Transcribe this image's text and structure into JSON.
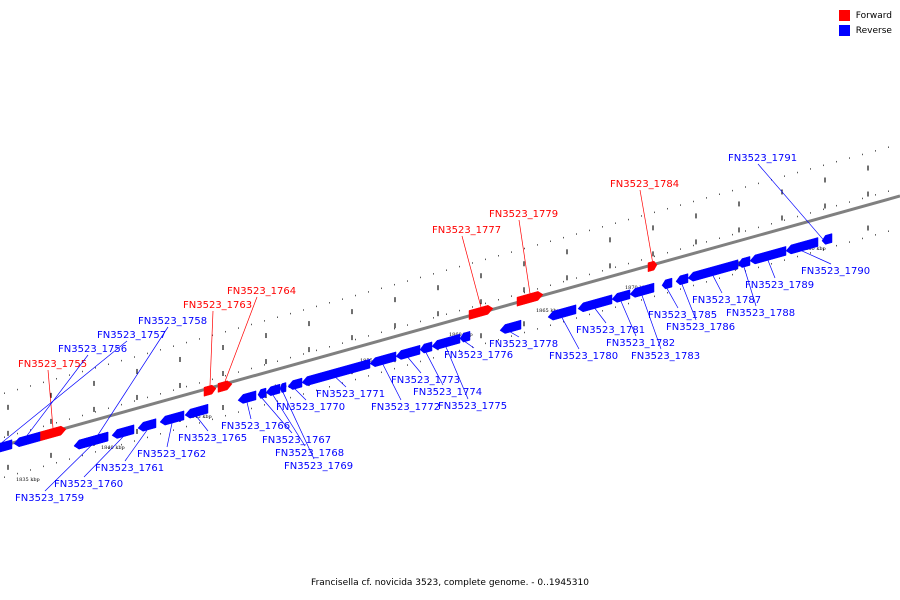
{
  "colors": {
    "forward": "#ff0000",
    "reverse": "#0000ff",
    "backbone": "#808080"
  },
  "legend": [
    {
      "label": "Forward",
      "color": "#ff0000"
    },
    {
      "label": "Reverse",
      "color": "#0000ff"
    }
  ],
  "caption": "Francisella cf. novicida 3523, complete genome. - 0..1945310",
  "ticks": [
    "1835 kbp",
    "1840 kbp",
    "1845 kbp",
    "1850 kbp",
    "1855 kbp",
    "1860 kbp",
    "1865 kbp",
    "1870 kbp",
    "1875 kbp",
    "1880 kbp"
  ],
  "genes": [
    {
      "name": "FN3523_1755",
      "strand": "forward"
    },
    {
      "name": "FN3523_1756",
      "strand": "reverse"
    },
    {
      "name": "FN3523_1757",
      "strand": "reverse"
    },
    {
      "name": "FN3523_1758",
      "strand": "reverse"
    },
    {
      "name": "FN3523_1759",
      "strand": "reverse"
    },
    {
      "name": "FN3523_1760",
      "strand": "reverse"
    },
    {
      "name": "FN3523_1761",
      "strand": "reverse"
    },
    {
      "name": "FN3523_1762",
      "strand": "reverse"
    },
    {
      "name": "FN3523_1763",
      "strand": "forward"
    },
    {
      "name": "FN3523_1764",
      "strand": "forward"
    },
    {
      "name": "FN3523_1765",
      "strand": "reverse"
    },
    {
      "name": "FN3523_1766",
      "strand": "reverse"
    },
    {
      "name": "FN3523_1767",
      "strand": "reverse"
    },
    {
      "name": "FN3523_1768",
      "strand": "reverse"
    },
    {
      "name": "FN3523_1769",
      "strand": "reverse"
    },
    {
      "name": "FN3523_1770",
      "strand": "reverse"
    },
    {
      "name": "FN3523_1771",
      "strand": "reverse"
    },
    {
      "name": "FN3523_1772",
      "strand": "reverse"
    },
    {
      "name": "FN3523_1773",
      "strand": "reverse"
    },
    {
      "name": "FN3523_1774",
      "strand": "reverse"
    },
    {
      "name": "FN3523_1775",
      "strand": "reverse"
    },
    {
      "name": "FN3523_1776",
      "strand": "reverse"
    },
    {
      "name": "FN3523_1777",
      "strand": "forward"
    },
    {
      "name": "FN3523_1778",
      "strand": "reverse"
    },
    {
      "name": "FN3523_1779",
      "strand": "forward"
    },
    {
      "name": "FN3523_1780",
      "strand": "reverse"
    },
    {
      "name": "FN3523_1781",
      "strand": "reverse"
    },
    {
      "name": "FN3523_1782",
      "strand": "reverse"
    },
    {
      "name": "FN3523_1783",
      "strand": "reverse"
    },
    {
      "name": "FN3523_1784",
      "strand": "forward"
    },
    {
      "name": "FN3523_1785",
      "strand": "reverse"
    },
    {
      "name": "FN3523_1786",
      "strand": "reverse"
    },
    {
      "name": "FN3523_1787",
      "strand": "reverse"
    },
    {
      "name": "FN3523_1788",
      "strand": "reverse"
    },
    {
      "name": "FN3523_1789",
      "strand": "reverse"
    },
    {
      "name": "FN3523_1790",
      "strand": "reverse"
    },
    {
      "name": "FN3523_1791",
      "strand": "reverse"
    }
  ]
}
